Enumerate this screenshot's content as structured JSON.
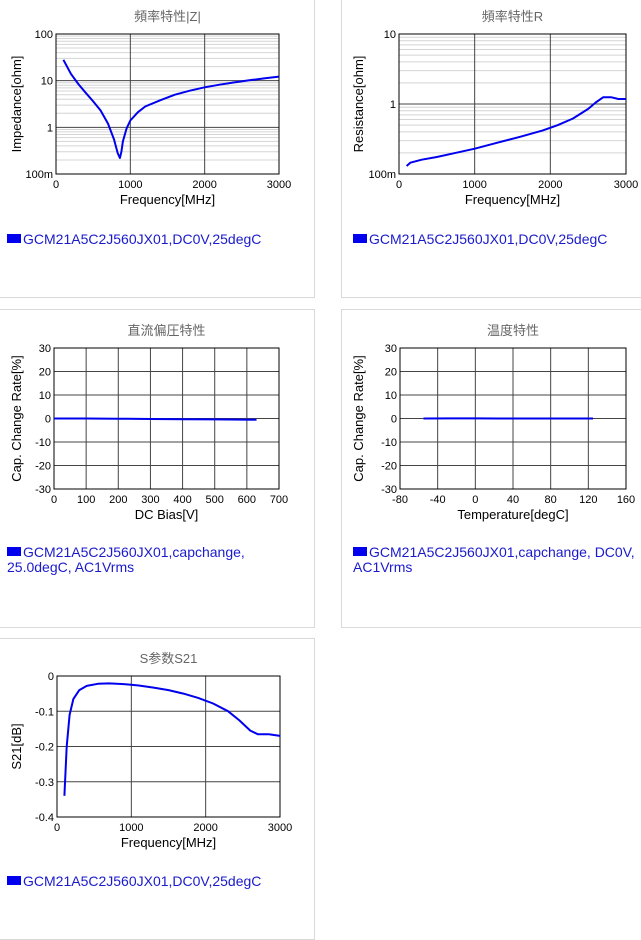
{
  "charts": [
    {
      "title": "頻率特性|Z|",
      "legend": "GCM21A5C2J560JX01,DC0V,25degC",
      "chart_data": {
        "type": "line",
        "title": "頻率特性|Z|",
        "xlabel": "Frequency[MHz]",
        "ylabel": "Impedance[ohm]",
        "xlim": [
          0,
          3000
        ],
        "ylim": [
          0.1,
          100
        ],
        "yscale": "log",
        "grid": true,
        "xticks": [
          {
            "v": 0,
            "label": "0"
          },
          {
            "v": 1000,
            "label": "1000"
          },
          {
            "v": 2000,
            "label": "2000"
          },
          {
            "v": 3000,
            "label": "3000"
          }
        ],
        "yticks": [
          {
            "v": 0.1,
            "label": "100m"
          },
          {
            "v": 1,
            "label": "1"
          },
          {
            "v": 10,
            "label": "10"
          },
          {
            "v": 100,
            "label": "100"
          }
        ],
        "series": [
          {
            "name": "GCM21A5C2J560JX01,DC0V,25degC",
            "color": "#0000ee",
            "x": [
              100,
              200,
              300,
              400,
              500,
              600,
              700,
              780,
              830,
              860,
              880,
              900,
              950,
              1000,
              1100,
              1200,
              1400,
              1600,
              1800,
              2000,
              2200,
              2400,
              2600,
              2800,
              3000
            ],
            "y": [
              28,
              14,
              8.5,
              5.5,
              3.6,
              2.3,
              1.2,
              0.55,
              0.28,
              0.22,
              0.3,
              0.5,
              0.95,
              1.4,
              2.1,
              2.8,
              3.8,
              5.0,
              6.1,
              7.2,
              8.2,
              9.2,
              10.2,
              11.2,
              12.2
            ]
          }
        ]
      }
    },
    {
      "title": "頻率特性R",
      "legend": "GCM21A5C2J560JX01,DC0V,25degC",
      "chart_data": {
        "type": "line",
        "title": "頻率特性R",
        "xlabel": "Frequency[MHz]",
        "ylabel": "Resistance[ohm]",
        "xlim": [
          0,
          3000
        ],
        "ylim": [
          0.1,
          10
        ],
        "yscale": "log",
        "grid": true,
        "xticks": [
          {
            "v": 0,
            "label": "0"
          },
          {
            "v": 1000,
            "label": "1000"
          },
          {
            "v": 2000,
            "label": "2000"
          },
          {
            "v": 3000,
            "label": "3000"
          }
        ],
        "yticks": [
          {
            "v": 0.1,
            "label": "100m"
          },
          {
            "v": 1,
            "label": "1"
          },
          {
            "v": 10,
            "label": "10"
          }
        ],
        "series": [
          {
            "name": "GCM21A5C2J560JX01,DC0V,25degC",
            "color": "#0000ee",
            "x": [
              100,
              150,
              200,
              300,
              500,
              700,
              1000,
              1300,
              1600,
              1900,
              2100,
              2300,
              2500,
              2600,
              2700,
              2800,
              2900,
              3000
            ],
            "y": [
              0.13,
              0.145,
              0.15,
              0.16,
              0.175,
              0.195,
              0.23,
              0.28,
              0.34,
              0.42,
              0.5,
              0.62,
              0.85,
              1.05,
              1.25,
              1.25,
              1.18,
              1.18
            ]
          }
        ]
      }
    },
    {
      "title": "直流偏圧特性",
      "legend": "GCM21A5C2J560JX01,capchange, 25.0degC, AC1Vrms",
      "chart_data": {
        "type": "line",
        "title": "直流偏圧特性",
        "xlabel": "DC Bias[V]",
        "ylabel": "Cap. Change Rate[%]",
        "xlim": [
          0,
          700
        ],
        "ylim": [
          -30,
          30
        ],
        "yscale": "linear",
        "grid": true,
        "xticks": [
          {
            "v": 0,
            "label": "0"
          },
          {
            "v": 100,
            "label": "100"
          },
          {
            "v": 200,
            "label": "200"
          },
          {
            "v": 300,
            "label": "300"
          },
          {
            "v": 400,
            "label": "400"
          },
          {
            "v": 500,
            "label": "500"
          },
          {
            "v": 600,
            "label": "600"
          },
          {
            "v": 700,
            "label": "700"
          }
        ],
        "yticks": [
          {
            "v": 30,
            "label": "30"
          },
          {
            "v": 20,
            "label": "20"
          },
          {
            "v": 10,
            "label": "10"
          },
          {
            "v": 0,
            "label": "0"
          },
          {
            "v": -10,
            "label": "-10"
          },
          {
            "v": -20,
            "label": "-20"
          },
          {
            "v": -30,
            "label": "-30"
          }
        ],
        "series": [
          {
            "name": "GCM21A5C2J560JX01,capchange, 25.0degC, AC1Vrms",
            "color": "#0000ee",
            "x": [
              0,
              100,
              200,
              300,
              400,
              500,
              630
            ],
            "y": [
              0,
              0,
              -0.1,
              -0.2,
              -0.3,
              -0.4,
              -0.5
            ]
          }
        ]
      }
    },
    {
      "title": "温度特性",
      "legend": "GCM21A5C2J560JX01,capchange, DC0V, AC1Vrms",
      "chart_data": {
        "type": "line",
        "title": "温度特性",
        "xlabel": "Temperature[degC]",
        "ylabel": "Cap. Change Rate[%]",
        "xlim": [
          -80,
          160
        ],
        "ylim": [
          -30,
          30
        ],
        "yscale": "linear",
        "grid": true,
        "xticks": [
          {
            "v": -80,
            "label": "-80"
          },
          {
            "v": -40,
            "label": "-40"
          },
          {
            "v": 0,
            "label": "0"
          },
          {
            "v": 40,
            "label": "40"
          },
          {
            "v": 80,
            "label": "80"
          },
          {
            "v": 120,
            "label": "120"
          },
          {
            "v": 160,
            "label": "160"
          }
        ],
        "yticks": [
          {
            "v": 30,
            "label": "30"
          },
          {
            "v": 20,
            "label": "20"
          },
          {
            "v": 10,
            "label": "10"
          },
          {
            "v": 0,
            "label": "0"
          },
          {
            "v": -10,
            "label": "-10"
          },
          {
            "v": -20,
            "label": "-20"
          },
          {
            "v": -30,
            "label": "-30"
          }
        ],
        "series": [
          {
            "name": "GCM21A5C2J560JX01,capchange, DC0V, AC1Vrms",
            "color": "#0000ee",
            "x": [
              -55,
              -25,
              0,
              25,
              50,
              85,
              125
            ],
            "y": [
              0,
              0.05,
              0.05,
              0,
              0,
              0,
              0
            ]
          }
        ]
      }
    },
    {
      "title": "S参数S21",
      "legend": "GCM21A5C2J560JX01,DC0V,25degC",
      "chart_data": {
        "type": "line",
        "title": "S参数S21",
        "xlabel": "Frequency[MHz]",
        "ylabel": "S21[dB]",
        "xlim": [
          0,
          3000
        ],
        "ylim": [
          -0.4,
          0
        ],
        "yscale": "linear",
        "grid": true,
        "xticks": [
          {
            "v": 0,
            "label": "0"
          },
          {
            "v": 1000,
            "label": "1000"
          },
          {
            "v": 2000,
            "label": "2000"
          },
          {
            "v": 3000,
            "label": "3000"
          }
        ],
        "yticks": [
          {
            "v": 0,
            "label": "0"
          },
          {
            "v": -0.1,
            "label": "-0.1"
          },
          {
            "v": -0.2,
            "label": "-0.2"
          },
          {
            "v": -0.3,
            "label": "-0.3"
          },
          {
            "v": -0.4,
            "label": "-0.4"
          }
        ],
        "series": [
          {
            "name": "GCM21A5C2J560JX01,DC0V,25degC",
            "color": "#0000ee",
            "x": [
              100,
              130,
              170,
              220,
              300,
              400,
              550,
              700,
              900,
              1100,
              1300,
              1500,
              1700,
              1900,
              2100,
              2300,
              2450,
              2600,
              2700,
              2850,
              3000
            ],
            "y": [
              -0.34,
              -0.2,
              -0.11,
              -0.065,
              -0.04,
              -0.028,
              -0.022,
              -0.021,
              -0.023,
              -0.027,
              -0.033,
              -0.04,
              -0.05,
              -0.062,
              -0.078,
              -0.1,
              -0.125,
              -0.155,
              -0.165,
              -0.165,
              -0.17
            ]
          }
        ]
      }
    }
  ]
}
